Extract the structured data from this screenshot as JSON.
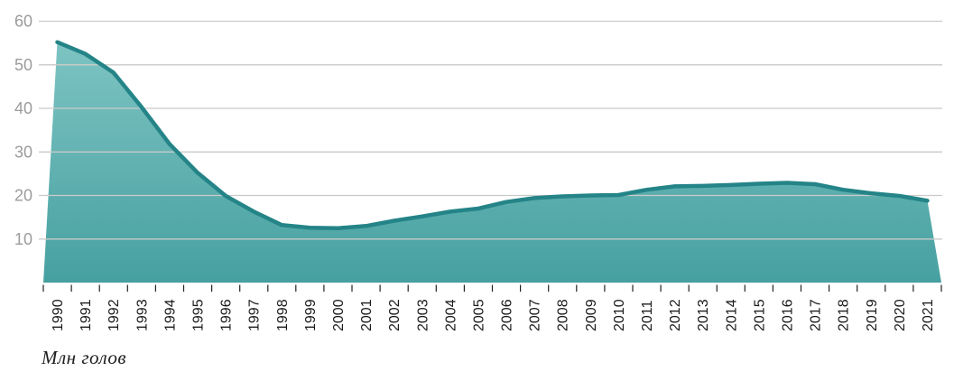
{
  "page": {
    "background": "#ffffff"
  },
  "colors": {
    "area_top": "#82c7c6",
    "area_bottom": "#47a0a0",
    "line": "#248487",
    "gridline": "#cacaca",
    "y_label": "#9c9c9c",
    "x_label": "#1b1b1b",
    "tick": "#222222",
    "caption": "#1f1f1f"
  },
  "chart_data": {
    "type": "area",
    "title": "",
    "xlabel": "",
    "ylabel": "Млн голов",
    "x": [
      1990,
      1991,
      1992,
      1993,
      1994,
      1995,
      1996,
      1997,
      1998,
      1999,
      2000,
      2001,
      2002,
      2003,
      2004,
      2005,
      2006,
      2007,
      2008,
      2009,
      2010,
      2011,
      2012,
      2013,
      2014,
      2015,
      2016,
      2017,
      2018,
      2019,
      2020,
      2021
    ],
    "values": [
      55.2,
      52.5,
      48.2,
      40.3,
      31.8,
      25.2,
      19.9,
      16.3,
      13.2,
      12.6,
      12.5,
      13.0,
      14.2,
      15.2,
      16.3,
      17.0,
      18.5,
      19.4,
      19.8,
      20.0,
      20.1,
      21.3,
      22.1,
      22.2,
      22.4,
      22.7,
      22.9,
      22.6,
      21.3,
      20.5,
      19.9,
      18.8
    ],
    "ylim": [
      0,
      60
    ],
    "yticks": [
      10,
      20,
      30,
      40,
      50,
      60
    ],
    "grid": true,
    "legend": false
  }
}
